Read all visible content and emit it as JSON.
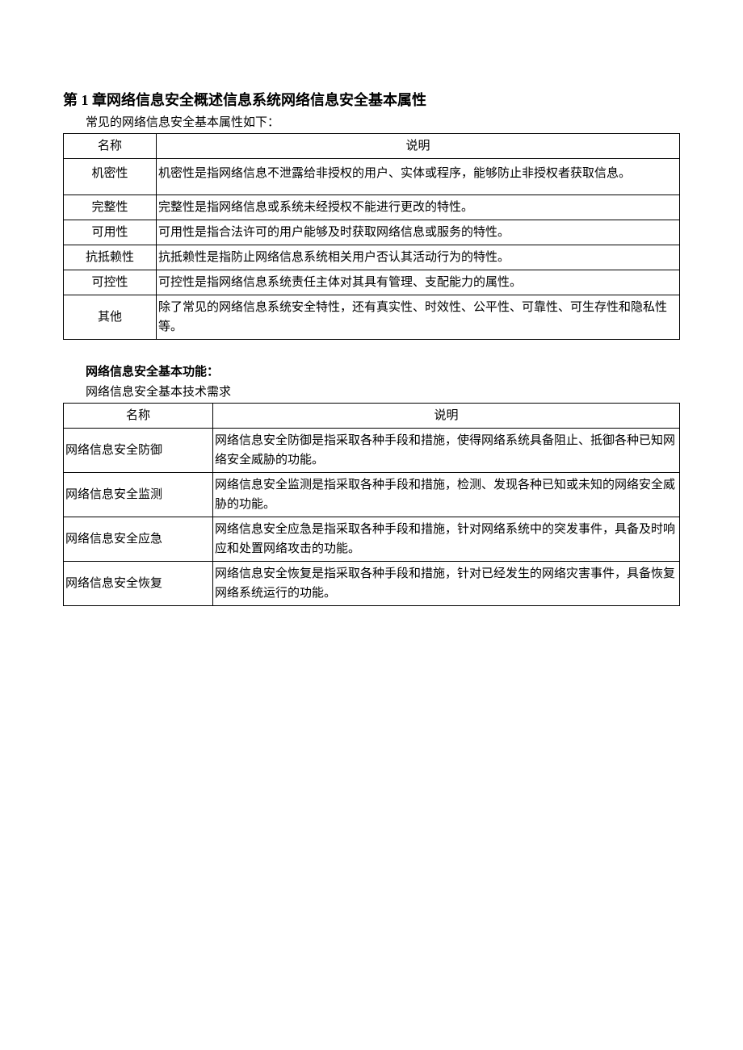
{
  "title": "第 1 章网络信息安全概述信息系统网络信息安全基本属性",
  "subtitle": "常见的网络信息安全基本属性如下：",
  "table1": {
    "headers": {
      "name": "名称",
      "desc": "说明"
    },
    "rows": [
      {
        "name": "机密性",
        "desc": "机密性是指网络信息不泄露给非授权的用户、实体或程序，能够防止非授权者获取信息。",
        "tall": true
      },
      {
        "name": "完整性",
        "desc": "完整性是指网络信息或系统未经授权不能进行更改的特性。"
      },
      {
        "name": "可用性",
        "desc": "可用性是指合法许可的用户能够及时获取网络信息或服务的特性。"
      },
      {
        "name": "抗抵赖性",
        "desc": "抗抵赖性是指防止网络信息系统相关用户否认其活动行为的特性。"
      },
      {
        "name": "可控性",
        "desc": "可控性是指网络信息系统责任主体对其具有管理、支配能力的属性。"
      },
      {
        "name": "其他",
        "desc": "除了常见的网络信息系统安全特性，还有真实性、时效性、公平性、可靠性、可生存性和隐私性等。"
      }
    ]
  },
  "section2_title": "网络信息安全基本功能：",
  "section2_sub": "网络信息安全基本技术需求",
  "table2": {
    "headers": {
      "name": "名称",
      "desc": "说明"
    },
    "rows": [
      {
        "name": "网络信息安全防御",
        "desc": "网络信息安全防御是指采取各种手段和措施，使得网络系统具备阻止、抵御各种已知网络安全威胁的功能。"
      },
      {
        "name": "网络信息安全监测",
        "desc": "网络信息安全监测是指采取各种手段和措施，检测、发现各种已知或未知的网络安全威胁的功能。"
      },
      {
        "name": "网络信息安全应急",
        "desc": "网络信息安全应急是指采取各种手段和措施，针对网络系统中的突发事件，具备及时响应和处置网络攻击的功能。"
      },
      {
        "name": "网络信息安全恢复",
        "desc": "网络信息安全恢复是指采取各种手段和措施，针对已经发生的网络灾害事件，具备恢复网络系统运行的功能。"
      }
    ]
  }
}
